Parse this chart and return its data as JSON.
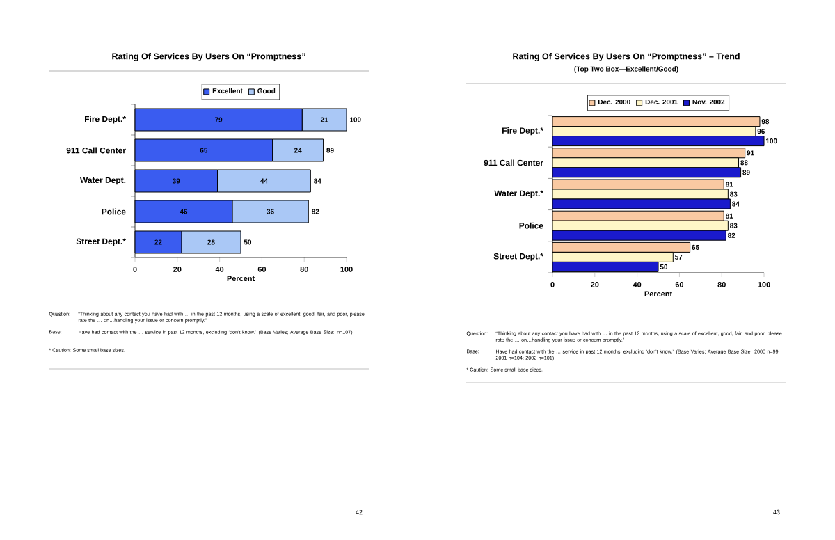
{
  "chart_data": [
    {
      "type": "bar",
      "title": "Rating Of Services By Users On “Promptness”",
      "xlabel": "Percent",
      "orientation": "horizontal",
      "stacked": true,
      "legend": "top",
      "data_labels": true,
      "categories": [
        "Fire Dept.*",
        "911 Call Center",
        "Water Dept.",
        "Police",
        "Street Dept.*"
      ],
      "series": [
        {
          "name": "Excellent",
          "color": "#3a5cf0",
          "values": [
            79,
            65,
            39,
            46,
            22
          ]
        },
        {
          "name": "Good",
          "color": "#aac8f6",
          "values": [
            21,
            24,
            44,
            36,
            28
          ]
        }
      ],
      "totals": [
        "100",
        "89",
        "84",
        "82",
        "50"
      ],
      "xlim": [
        0,
        100
      ],
      "xticks": [
        0,
        20,
        40,
        60,
        80,
        100
      ],
      "annotations": [
        "Question:",
        "“Thinking about any contact you have had with … in the past 12 months, using a scale of excellent, good, fair, and poor, please rate the … on…handling your issue or concern promptly.”",
        "Base:",
        "Have had contact with the … service in past 12 months, excluding ‘don’t know.’ (Base Varies; Average Base Size: n=107)",
        "* Caution: Some small base sizes.",
        "42"
      ]
    },
    {
      "type": "bar",
      "title": "Rating Of Services By Users On “Promptness” – Trend",
      "subtitle": "(Top Two Box—Excellent/Good)",
      "xlabel": "Percent",
      "orientation": "horizontal",
      "legend": "top",
      "data_labels": true,
      "categories": [
        "Fire Dept.*",
        "911 Call Center",
        "Water Dept.*",
        "Police",
        "Street Dept.*"
      ],
      "series": [
        {
          "name": "Dec. 2000",
          "color": "#f9c9a2",
          "values": [
            98,
            91,
            81,
            81,
            65
          ]
        },
        {
          "name": "Dec. 2001",
          "color": "#fff6c8",
          "values": [
            96,
            88,
            83,
            83,
            57
          ]
        },
        {
          "name": "Nov. 2002",
          "color": "#1a1acc",
          "values": [
            100,
            89,
            84,
            82,
            50
          ]
        }
      ],
      "xlim": [
        0,
        100
      ],
      "xticks": [
        0,
        20,
        40,
        60,
        80,
        100
      ],
      "annotations": [
        "Question:",
        "“Thinking about any contact you have had with … in the past 12 months, using a scale of excellent, good, fair, and poor, please rate the … on…handling your issue or concern promptly.”",
        "Base:",
        "Have had contact with the … service in past 12 months, excluding ‘don’t know.’ (Base Varies; Average Base Size: 2000 n=99; 2001 n=104; 2002 n=101)",
        "* Caution: Some small base sizes.",
        "43"
      ]
    }
  ]
}
